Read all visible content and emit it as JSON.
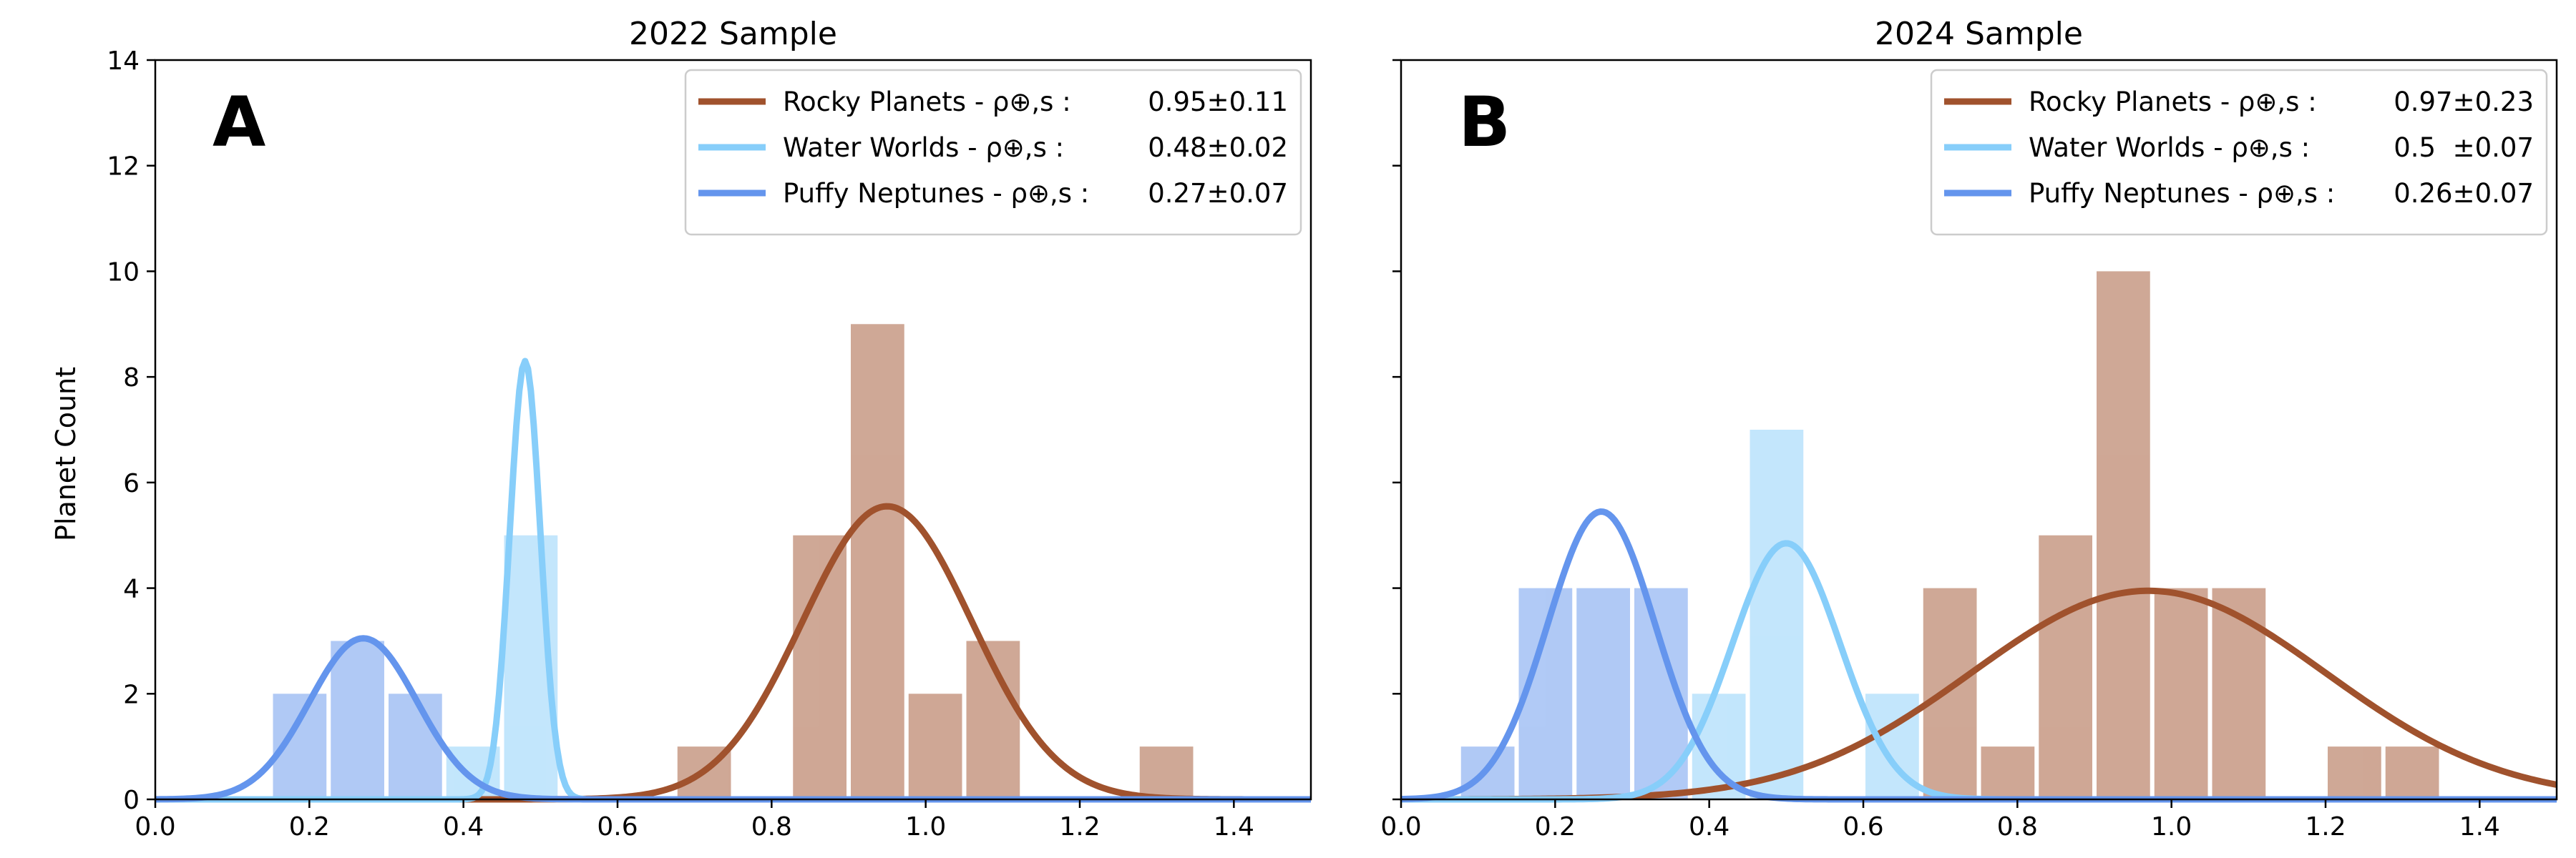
{
  "figure": {
    "ylabel": "Planet Count"
  },
  "colors": {
    "rocky": "#A0522D",
    "water": "#87CEFA",
    "puffy": "#6495ED"
  },
  "chart_data": [
    {
      "type": "bar",
      "title": "2022 Sample",
      "panel_label": "A",
      "xlabel": "",
      "ylabel": "Planet Count",
      "xlim": [
        0.0,
        1.5
      ],
      "ylim": [
        0,
        14
      ],
      "xticks": [
        "0.0",
        "0.2",
        "0.4",
        "0.6",
        "0.8",
        "1.0",
        "1.2",
        "1.4"
      ],
      "yticks": [
        "0",
        "2",
        "4",
        "6",
        "8",
        "10",
        "12",
        "14"
      ],
      "bin_width": 0.075,
      "legend": [
        {
          "name": "Rocky Planets - ρ⊕,s :",
          "value": "0.95±0.11",
          "color": "rocky"
        },
        {
          "name": "Water Worlds - ρ⊕,s :",
          "value": "0.48±0.02",
          "color": "water"
        },
        {
          "name": "Puffy Neptunes - ρ⊕,s :",
          "value": "0.27±0.07",
          "color": "puffy"
        }
      ],
      "series": [
        {
          "name": "Rocky Planets",
          "color": "rocky",
          "bins": [
            {
              "x": 0.7125,
              "count": 1
            },
            {
              "x": 0.8625,
              "count": 5
            },
            {
              "x": 0.9375,
              "count": 9
            },
            {
              "x": 1.0125,
              "count": 2
            },
            {
              "x": 1.0875,
              "count": 3
            },
            {
              "x": 1.3125,
              "count": 1
            }
          ],
          "fit": {
            "mean": 0.95,
            "sigma": 0.11,
            "peak": 5.55
          }
        },
        {
          "name": "Water Worlds",
          "color": "water",
          "bins": [
            {
              "x": 0.4125,
              "count": 1
            },
            {
              "x": 0.4875,
              "count": 5
            }
          ],
          "fit": {
            "mean": 0.48,
            "sigma": 0.02,
            "peak": 8.3
          }
        },
        {
          "name": "Puffy Neptunes",
          "color": "puffy",
          "bins": [
            {
              "x": 0.1875,
              "count": 2
            },
            {
              "x": 0.2625,
              "count": 3
            },
            {
              "x": 0.3375,
              "count": 2
            }
          ],
          "fit": {
            "mean": 0.27,
            "sigma": 0.07,
            "peak": 3.05
          }
        }
      ]
    },
    {
      "type": "bar",
      "title": "2024 Sample",
      "panel_label": "B",
      "xlabel": "",
      "ylabel": "",
      "xlim": [
        0.0,
        1.5
      ],
      "ylim": [
        0,
        14
      ],
      "xticks": [
        "0.0",
        "0.2",
        "0.4",
        "0.6",
        "0.8",
        "1.0",
        "1.2",
        "1.4"
      ],
      "yticks": [],
      "bin_width": 0.075,
      "legend": [
        {
          "name": "Rocky Planets - ρ⊕,s :",
          "value": "0.97±0.23",
          "color": "rocky"
        },
        {
          "name": "Water Worlds - ρ⊕,s :",
          "value": "0.5  ±0.07",
          "color": "water"
        },
        {
          "name": "Puffy Neptunes - ρ⊕,s :",
          "value": "0.26±0.07",
          "color": "puffy"
        }
      ],
      "series": [
        {
          "name": "Rocky Planets",
          "color": "rocky",
          "bins": [
            {
              "x": 0.7125,
              "count": 4
            },
            {
              "x": 0.7875,
              "count": 1
            },
            {
              "x": 0.8625,
              "count": 5
            },
            {
              "x": 0.9375,
              "count": 10
            },
            {
              "x": 1.0125,
              "count": 4
            },
            {
              "x": 1.0875,
              "count": 4
            },
            {
              "x": 1.2375,
              "count": 1
            },
            {
              "x": 1.3125,
              "count": 1
            }
          ],
          "fit": {
            "mean": 0.97,
            "sigma": 0.23,
            "peak": 3.95
          }
        },
        {
          "name": "Water Worlds",
          "color": "water",
          "bins": [
            {
              "x": 0.4125,
              "count": 2
            },
            {
              "x": 0.4875,
              "count": 7
            },
            {
              "x": 0.6375,
              "count": 2
            }
          ],
          "fit": {
            "mean": 0.5,
            "sigma": 0.07,
            "peak": 4.85
          }
        },
        {
          "name": "Puffy Neptunes",
          "color": "puffy",
          "bins": [
            {
              "x": 0.1125,
              "count": 1
            },
            {
              "x": 0.1875,
              "count": 4
            },
            {
              "x": 0.2625,
              "count": 4
            },
            {
              "x": 0.3375,
              "count": 4
            }
          ],
          "fit": {
            "mean": 0.26,
            "sigma": 0.07,
            "peak": 5.45
          }
        }
      ]
    }
  ]
}
